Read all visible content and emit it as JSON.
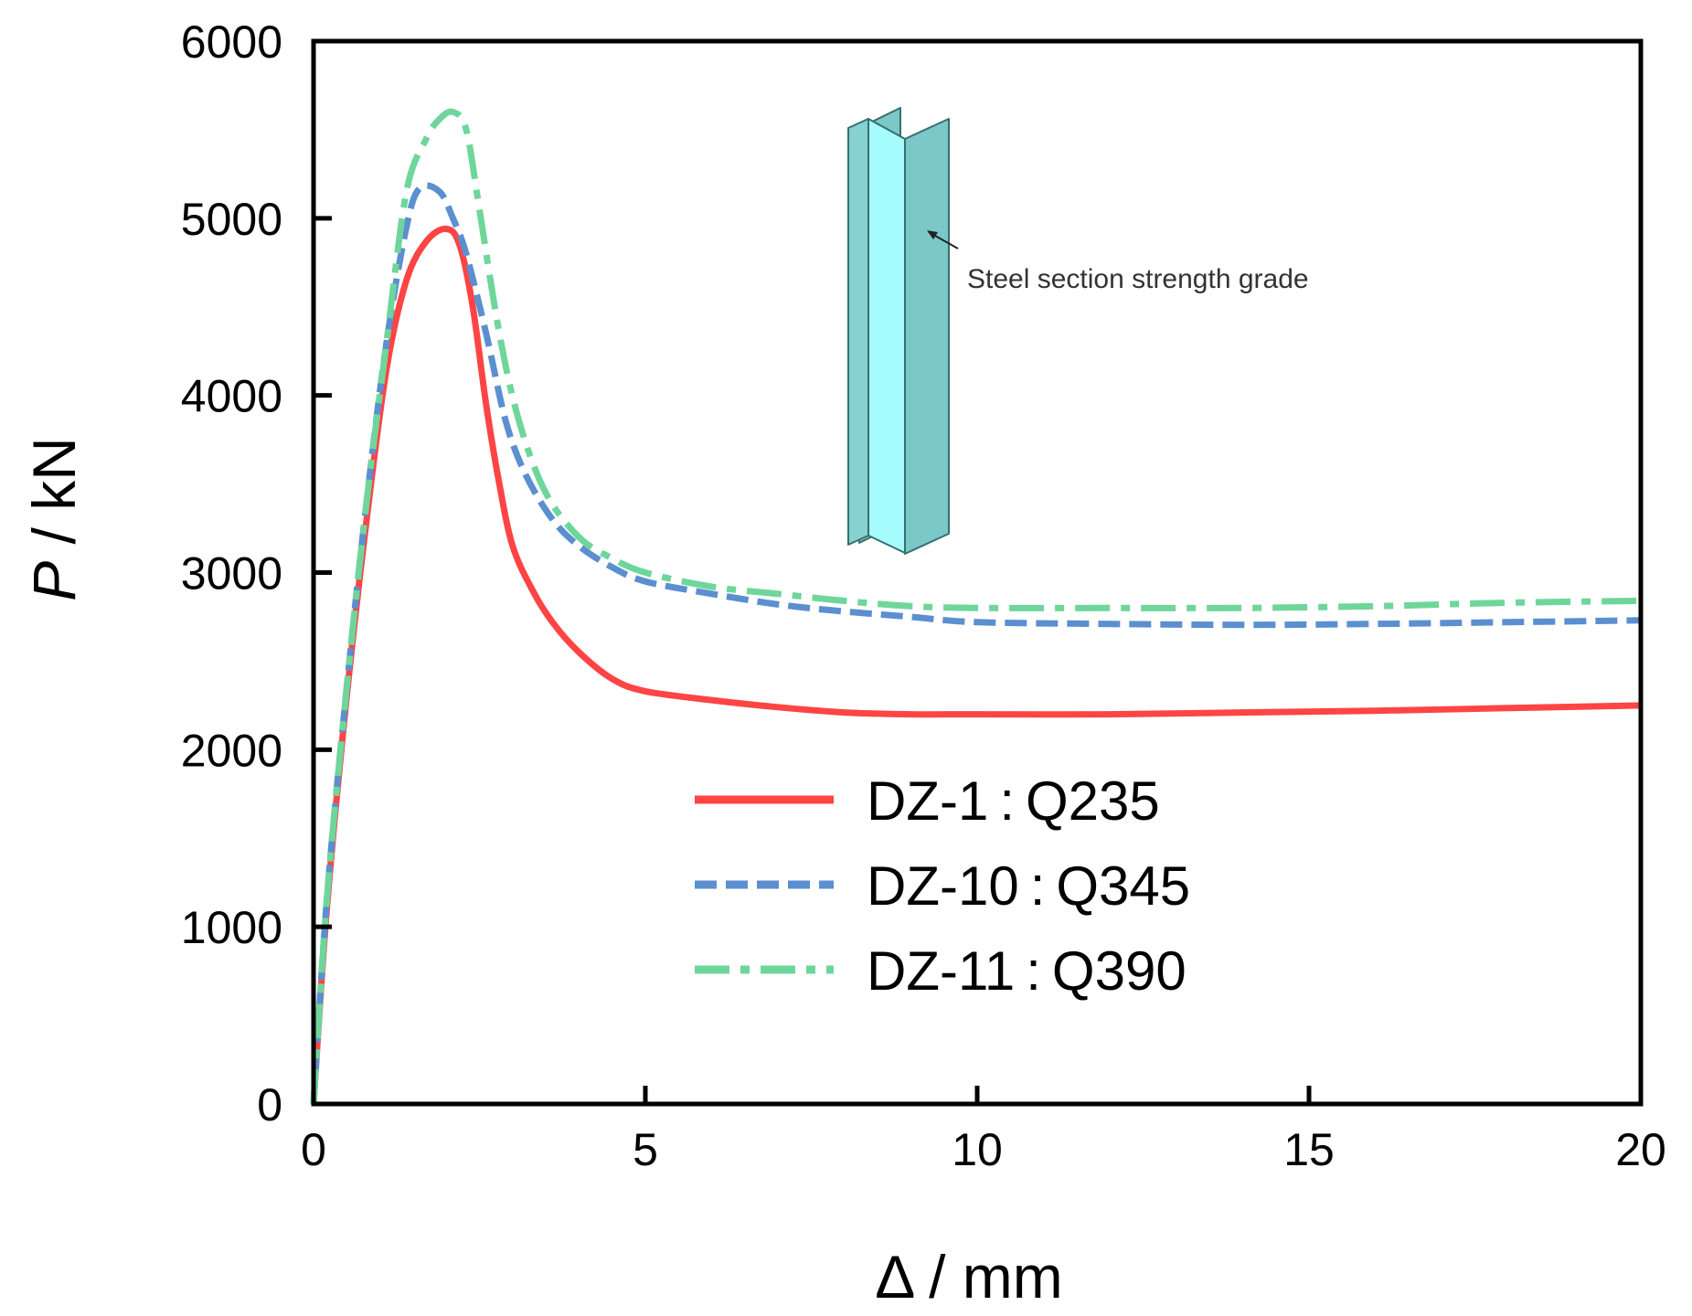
{
  "chart_data": {
    "type": "line",
    "xlabel_symbol": "Δ",
    "xlabel_unit": " / mm",
    "ylabel_symbol": "P",
    "ylabel_unit": " / kN",
    "xlim": [
      0,
      20
    ],
    "ylim": [
      0,
      6000
    ],
    "xticks": [
      0,
      5,
      10,
      15,
      20
    ],
    "yticks": [
      0,
      1000,
      2000,
      3000,
      4000,
      5000,
      6000
    ],
    "grid": false,
    "legend_position": "center-right",
    "annotation": "Steel section strength grade",
    "series": [
      {
        "name": "DZ-1：Q235",
        "label_id": "DZ-1",
        "label_grade": "Q235",
        "color": "#ff4444",
        "style": "solid",
        "x": [
          0,
          0.2,
          0.5,
          0.8,
          1.1,
          1.4,
          1.7,
          2.0,
          2.2,
          2.4,
          2.6,
          2.8,
          3.0,
          3.3,
          3.6,
          4.0,
          4.5,
          5.0,
          6.0,
          7.0,
          8.0,
          9.0,
          10.0,
          12.0,
          14.0,
          16.0,
          18.0,
          20.0
        ],
        "y": [
          0,
          1100,
          2300,
          3300,
          4150,
          4650,
          4870,
          4940,
          4850,
          4500,
          3950,
          3500,
          3150,
          2900,
          2720,
          2550,
          2400,
          2330,
          2280,
          2240,
          2210,
          2200,
          2200,
          2200,
          2210,
          2220,
          2235,
          2250
        ]
      },
      {
        "name": "DZ-10：Q345",
        "label_id": "DZ-10",
        "label_grade": "Q345",
        "color": "#5b8fd0",
        "style": "dashed",
        "x": [
          0,
          0.2,
          0.5,
          0.8,
          1.1,
          1.4,
          1.6,
          1.9,
          2.1,
          2.3,
          2.6,
          2.9,
          3.2,
          3.6,
          4.0,
          4.5,
          5.0,
          6.0,
          7.0,
          8.0,
          9.0,
          10.0,
          12.0,
          14.0,
          16.0,
          18.0,
          20.0
        ],
        "y": [
          0,
          1150,
          2350,
          3400,
          4300,
          4950,
          5170,
          5150,
          5000,
          4800,
          4350,
          3850,
          3550,
          3300,
          3150,
          3030,
          2950,
          2880,
          2820,
          2780,
          2750,
          2720,
          2710,
          2705,
          2710,
          2720,
          2730
        ]
      },
      {
        "name": "DZ-11：Q390",
        "label_id": "DZ-11",
        "label_grade": "Q390",
        "color": "#6fd69b",
        "style": "dashdot",
        "x": [
          0,
          0.2,
          0.5,
          0.8,
          1.1,
          1.4,
          1.7,
          1.9,
          2.1,
          2.3,
          2.5,
          2.8,
          3.1,
          3.5,
          4.0,
          4.5,
          5.0,
          6.0,
          7.0,
          8.0,
          9.0,
          10.0,
          12.0,
          14.0,
          16.0,
          18.0,
          20.0
        ],
        "y": [
          0,
          1150,
          2350,
          3400,
          4300,
          5150,
          5450,
          5560,
          5600,
          5500,
          5050,
          4350,
          3850,
          3450,
          3200,
          3080,
          3000,
          2920,
          2880,
          2840,
          2810,
          2800,
          2800,
          2800,
          2810,
          2830,
          2840
        ]
      }
    ]
  }
}
